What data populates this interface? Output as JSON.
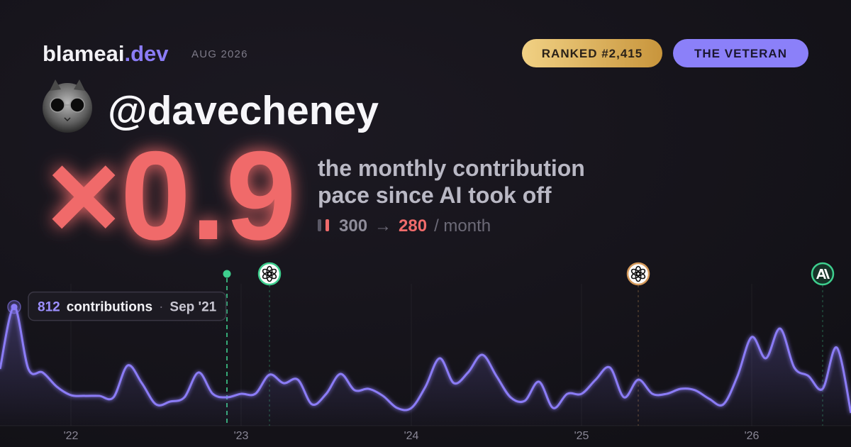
{
  "header": {
    "brand": "blameai",
    "domain": ".dev",
    "date": "AUG 2026",
    "rank": "RANKED #2,415",
    "tag": "THE VETERAN"
  },
  "profile": {
    "handle": "@davecheney"
  },
  "stat": {
    "multiplier": "×0.9",
    "caption": [
      "the monthly contribution",
      "pace since AI took off"
    ],
    "before": 300,
    "arrow": "→",
    "after": 280,
    "unit": "/ month"
  },
  "chart_data": {
    "type": "line",
    "color": "#8b7cf6",
    "grid": true,
    "x": [
      "2021-08",
      "2021-09",
      "2021-10",
      "2021-11",
      "2021-12",
      "2022-01",
      "2022-02",
      "2022-03",
      "2022-04",
      "2022-05",
      "2022-06",
      "2022-07",
      "2022-08",
      "2022-09",
      "2022-10",
      "2022-11",
      "2022-12",
      "2023-01",
      "2023-02",
      "2023-03",
      "2023-04",
      "2023-05",
      "2023-06",
      "2023-07",
      "2023-08",
      "2023-09",
      "2023-10",
      "2023-11",
      "2023-12",
      "2024-01",
      "2024-02",
      "2024-03",
      "2024-04",
      "2024-05",
      "2024-06",
      "2024-07",
      "2024-08",
      "2024-09",
      "2024-10",
      "2024-11",
      "2024-12",
      "2025-01",
      "2025-02",
      "2025-03",
      "2025-04",
      "2025-05",
      "2025-06",
      "2025-07",
      "2025-08",
      "2025-09",
      "2025-10",
      "2025-11",
      "2025-12",
      "2026-01",
      "2026-02",
      "2026-03",
      "2026-04",
      "2026-05",
      "2026-06",
      "2026-07",
      "2026-08"
    ],
    "values": [
      388,
      812,
      388,
      364,
      267,
      209,
      204,
      204,
      194,
      412,
      291,
      146,
      165,
      194,
      364,
      218,
      194,
      218,
      218,
      349,
      291,
      315,
      146,
      218,
      354,
      243,
      252,
      204,
      121,
      121,
      267,
      461,
      291,
      364,
      485,
      340,
      194,
      170,
      301,
      121,
      218,
      218,
      315,
      398,
      194,
      315,
      218,
      218,
      252,
      243,
      184,
      146,
      340,
      606,
      461,
      664,
      398,
      340,
      252,
      534,
      87
    ],
    "xlim": [
      "2021-08",
      "2026-08"
    ],
    "ylim": [
      0,
      970
    ],
    "xticks": [
      {
        "value": "2022-01",
        "label": "'22"
      },
      {
        "value": "2023-01",
        "label": "'23"
      },
      {
        "value": "2024-01",
        "label": "'24"
      },
      {
        "value": "2025-01",
        "label": "'25"
      },
      {
        "value": "2026-01",
        "label": "'26"
      }
    ],
    "tooltip": {
      "unit": "contributions",
      "separator": "·",
      "date": "Sep '21"
    },
    "events": [
      {
        "x": "2022-12",
        "color": "#3ecf8e",
        "icon": "dot"
      },
      {
        "x": "2023-03",
        "color": "#3ecf8e",
        "icon": "openai"
      },
      {
        "x": "2025-05",
        "color": "#d59a5b",
        "icon": "openai"
      },
      {
        "x": "2026-06",
        "color": "#3ecf8e",
        "icon": "anthropic"
      }
    ]
  }
}
